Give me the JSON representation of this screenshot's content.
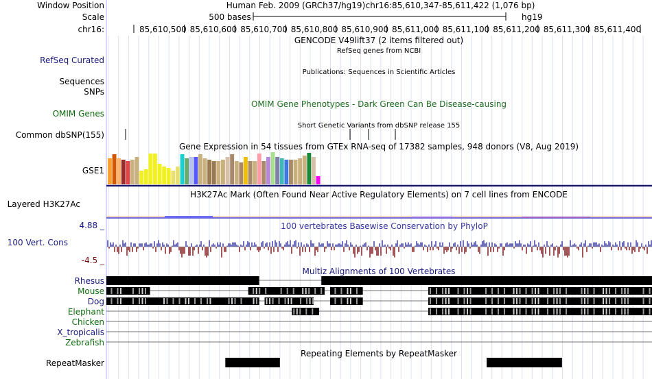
{
  "window_position_label": "Window Position",
  "scale_label": "Scale",
  "chrom_label": "chr16:",
  "assembly_text": "Human Feb. 2009 (GRCh37/hg19)",
  "position_text": "chr16:85,610,347-85,611,422 (1,076 bp)",
  "scale_bar_text": "500 bases",
  "db_label": "hg19",
  "ruler_ticks": [
    "85,610,500",
    "85,610,600",
    "85,610,700",
    "85,610,800",
    "85,610,900",
    "85,611,000",
    "85,611,100",
    "85,611,200",
    "85,611,300",
    "85,611,400"
  ],
  "tracks": {
    "gencode_title": "GENCODE V49lift37 (2 items filtered out)",
    "refseq_title": "RefSeq genes from NCBI",
    "refseq_label": "RefSeq Curated",
    "publications_title": "Publications: Sequences in Scientific Articles",
    "sequences_label": "Sequences",
    "snps_label": "SNPs",
    "omim_title": "OMIM Gene Phenotypes - Dark Green Can Be Disease-causing",
    "omim_label": "OMIM Genes",
    "dbsnp_title": "Short Genetic Variants from dbSNP release 155",
    "dbsnp_label": "Common dbSNP(155)",
    "gtex_title": "Gene Expression in 54 tissues from GTEx RNA-seq of 17382 samples, 948 donors (V8, Aug 2019)",
    "gtex_label": "GSE1",
    "h3k27ac_title": "H3K27Ac Mark (Often Found Near Active Regulatory Elements) on 7 cell lines from ENCODE",
    "h3k27ac_label": "Layered H3K27Ac",
    "cons_title": "100 vertebrates Basewise Conservation by PhyloP",
    "cons_label": "100 Vert. Cons",
    "cons_max": "4.88 _",
    "cons_min": "-4.5 _",
    "multiz_title": "Multiz Alignments of 100 Vertebrates",
    "species": [
      "Rhesus",
      "Mouse",
      "Dog",
      "Elephant",
      "Chicken",
      "X_tropicalis",
      "Zebrafish"
    ],
    "rmsk_title": "Repeating Elements by RepeatMasker",
    "rmsk_label": "RepeatMasker"
  },
  "colors": {
    "label_blue": "#1a1a80",
    "label_green": "#0d6b0d",
    "omim_green": "#1f6f1f",
    "cons_blue": "#3434a0",
    "cons_red": "#7a1010",
    "grid": "#dde0f4"
  },
  "gtex_values": [
    38,
    44,
    38,
    36,
    34,
    36,
    40,
    20,
    22,
    45,
    45,
    30,
    26,
    24,
    20,
    26,
    44,
    38,
    40,
    40,
    44,
    38,
    36,
    34,
    34,
    36,
    40,
    44,
    34,
    32,
    40,
    34,
    34,
    45,
    34,
    40,
    47,
    40,
    38,
    36,
    36,
    36,
    38,
    42,
    46,
    40
  ],
  "gtex_colors": [
    "#ff9f2e",
    "#d15800",
    "#ffb26b",
    "#9a2b2b",
    "#e04444",
    "#c8b07f",
    "#c8b07f",
    "#f0f022",
    "#f0f022",
    "#f0f022",
    "#f0f022",
    "#f0f022",
    "#f0f022",
    "#f0f022",
    "#e8e070",
    "#e8e070",
    "#1ad0d0",
    "#6ba86b",
    "#b8c4f0",
    "#5858ff",
    "#c8b07f",
    "#c8b07f",
    "#9a7a50",
    "#9a7a50",
    "#c8b07f",
    "#c8b07f",
    "#d6c0a8",
    "#a88a6a",
    "#c8b07f",
    "#a88a6a",
    "#f0c000",
    "#a88a6a",
    "#c8b07f",
    "#ff9ca6",
    "#a88a6a",
    "#b888d8",
    "#a8e090",
    "#8080a8",
    "#3fb8b8",
    "#3f76e0",
    "#a88a6a",
    "#c8b07f",
    "#c8b07f",
    "#c8b07f",
    "#1a8a3a",
    "#d6c0a8"
  ],
  "gtex_tail_value": 12,
  "gtex_tail_color": "#ff00ff",
  "cons_values": [
    0.1,
    -0.3,
    0.2,
    -0.4,
    0.4,
    -0.2,
    0.6,
    -0.5,
    0.2,
    0.4,
    -0.1,
    0.5,
    -0.3,
    0.3,
    -0.6,
    0.2,
    0.1,
    -0.2,
    0.5,
    -0.3,
    0.3,
    0.2,
    -0.5,
    0.4,
    -0.2,
    0.3,
    0.6,
    -0.1,
    0.2,
    -0.4,
    0.3,
    0.5,
    -0.3,
    0.2,
    0.4,
    -0.2,
    0.3,
    -0.6,
    0.2,
    0.4,
    -0.1,
    0.3,
    0.5,
    -0.4,
    0.2,
    0.3,
    -0.2,
    0.6,
    -0.3,
    0.2,
    0.4,
    -0.5,
    0.3,
    0.1,
    -0.2,
    0.4,
    0.3,
    -0.3,
    0.5,
    -0.1,
    0.2,
    0.4,
    -0.4,
    0.3,
    0.2,
    -0.2,
    0.6,
    -0.3,
    0.4,
    0.2,
    -0.5,
    0.3,
    0.1,
    -0.2,
    0.4,
    0.5,
    -0.3,
    0.2,
    0.3,
    -0.4
  ],
  "multiz_blocks": {
    "Rhesus": [
      [
        0,
        0.28
      ],
      [
        0.394,
        1.0
      ]
    ],
    "Mouse": [
      [
        0,
        0.08
      ],
      [
        0.26,
        0.4
      ],
      [
        0.41,
        0.47
      ],
      [
        0.59,
        1.0
      ]
    ],
    "Dog": [
      [
        0,
        0.28
      ],
      [
        0.29,
        0.38
      ],
      [
        0.41,
        0.47
      ],
      [
        0.59,
        1.0
      ]
    ],
    "Elephant": [
      [
        0.34,
        0.39
      ],
      [
        0.59,
        1.0
      ]
    ],
    "Chicken": [],
    "X_tropicalis": [],
    "Zebrafish": []
  },
  "rmsk_blocks": [
    [
      0.218,
      0.318
    ],
    [
      0.697,
      0.835
    ]
  ]
}
